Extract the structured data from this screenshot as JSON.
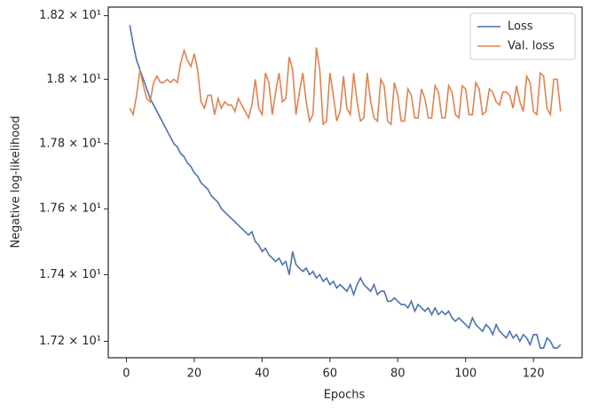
{
  "chart_data": {
    "type": "line",
    "xlabel": "Epochs",
    "ylabel": "Negative log-likelihood",
    "yscale": "log",
    "grid": false,
    "legend": "upper right",
    "x": [
      1,
      2,
      3,
      4,
      5,
      6,
      7,
      8,
      9,
      10,
      11,
      12,
      13,
      14,
      15,
      16,
      17,
      18,
      19,
      20,
      21,
      22,
      23,
      24,
      25,
      26,
      27,
      28,
      29,
      30,
      31,
      32,
      33,
      34,
      35,
      36,
      37,
      38,
      39,
      40,
      41,
      42,
      43,
      44,
      45,
      46,
      47,
      48,
      49,
      50,
      51,
      52,
      53,
      54,
      55,
      56,
      57,
      58,
      59,
      60,
      61,
      62,
      63,
      64,
      65,
      66,
      67,
      68,
      69,
      70,
      71,
      72,
      73,
      74,
      75,
      76,
      77,
      78,
      79,
      80,
      81,
      82,
      83,
      84,
      85,
      86,
      87,
      88,
      89,
      90,
      91,
      92,
      93,
      94,
      95,
      96,
      97,
      98,
      99,
      100,
      101,
      102,
      103,
      104,
      105,
      106,
      107,
      108,
      109,
      110,
      111,
      112,
      113,
      114,
      115,
      116,
      117,
      118,
      119,
      120,
      121,
      122,
      123,
      124,
      125,
      126,
      127,
      128
    ],
    "series": [
      {
        "name": "Loss",
        "color": "#4c72b0",
        "values": [
          18.17,
          18.11,
          18.06,
          18.03,
          18.0,
          17.97,
          17.94,
          17.92,
          17.9,
          17.88,
          17.86,
          17.84,
          17.82,
          17.8,
          17.79,
          17.77,
          17.76,
          17.74,
          17.73,
          17.71,
          17.7,
          17.68,
          17.67,
          17.66,
          17.64,
          17.63,
          17.62,
          17.6,
          17.59,
          17.58,
          17.57,
          17.56,
          17.55,
          17.54,
          17.53,
          17.52,
          17.53,
          17.5,
          17.49,
          17.47,
          17.48,
          17.46,
          17.45,
          17.44,
          17.45,
          17.43,
          17.44,
          17.4,
          17.47,
          17.43,
          17.42,
          17.41,
          17.42,
          17.4,
          17.41,
          17.39,
          17.4,
          17.38,
          17.39,
          17.37,
          17.38,
          17.36,
          17.37,
          17.36,
          17.35,
          17.37,
          17.34,
          17.37,
          17.39,
          17.37,
          17.36,
          17.35,
          17.37,
          17.34,
          17.35,
          17.35,
          17.32,
          17.32,
          17.33,
          17.32,
          17.31,
          17.31,
          17.3,
          17.32,
          17.29,
          17.31,
          17.3,
          17.29,
          17.3,
          17.28,
          17.3,
          17.28,
          17.29,
          17.28,
          17.29,
          17.27,
          17.26,
          17.27,
          17.26,
          17.25,
          17.24,
          17.27,
          17.25,
          17.24,
          17.23,
          17.25,
          17.24,
          17.22,
          17.25,
          17.23,
          17.22,
          17.21,
          17.23,
          17.21,
          17.22,
          17.2,
          17.22,
          17.21,
          17.19,
          17.22,
          17.22,
          17.18,
          17.18,
          17.21,
          17.2,
          17.18,
          17.18,
          17.19
        ]
      },
      {
        "name": "Val. loss",
        "color": "#dd8452",
        "values": [
          17.91,
          17.89,
          17.95,
          18.03,
          17.98,
          17.94,
          17.93,
          17.99,
          18.01,
          17.99,
          17.99,
          18.0,
          17.99,
          18.0,
          17.99,
          18.05,
          18.09,
          18.06,
          18.04,
          18.08,
          18.03,
          17.93,
          17.91,
          17.95,
          17.95,
          17.89,
          17.94,
          17.91,
          17.93,
          17.92,
          17.92,
          17.9,
          17.94,
          17.92,
          17.9,
          17.88,
          17.92,
          18.0,
          17.91,
          17.89,
          18.02,
          17.99,
          17.89,
          17.96,
          18.02,
          17.93,
          17.94,
          18.07,
          18.03,
          17.89,
          17.96,
          18.02,
          17.93,
          17.87,
          17.89,
          18.1,
          18.03,
          17.86,
          17.87,
          18.02,
          17.95,
          17.87,
          17.9,
          18.01,
          17.91,
          17.89,
          18.02,
          17.93,
          17.87,
          17.88,
          18.02,
          17.93,
          17.88,
          17.87,
          18.0,
          17.98,
          17.87,
          17.86,
          17.99,
          17.95,
          17.87,
          17.87,
          17.97,
          17.95,
          17.88,
          17.88,
          17.97,
          17.94,
          17.88,
          17.88,
          17.98,
          17.96,
          17.88,
          17.88,
          17.98,
          17.96,
          17.89,
          17.88,
          17.98,
          17.97,
          17.89,
          17.89,
          17.99,
          17.97,
          17.89,
          17.9,
          17.97,
          17.96,
          17.93,
          17.92,
          17.96,
          17.96,
          17.95,
          17.91,
          17.98,
          17.93,
          17.9,
          18.01,
          17.99,
          17.9,
          17.89,
          18.02,
          18.01,
          17.91,
          17.89,
          18.0,
          18.0,
          17.9
        ]
      }
    ],
    "xlim": [
      -5.35,
      134.35
    ],
    "xticks": [
      0,
      20,
      40,
      60,
      80,
      100,
      120
    ],
    "ylim": [
      17.151,
      18.227
    ],
    "yticks": [
      {
        "value": 17.2,
        "label": "1.72 × 10¹"
      },
      {
        "value": 17.4,
        "label": "1.74 × 10¹"
      },
      {
        "value": 17.6,
        "label": "1.76 × 10¹"
      },
      {
        "value": 17.8,
        "label": "1.78 × 10¹"
      },
      {
        "value": 18.0,
        "label": "1.8 × 10¹"
      },
      {
        "value": 18.2,
        "label": "1.82 × 10¹"
      }
    ]
  }
}
